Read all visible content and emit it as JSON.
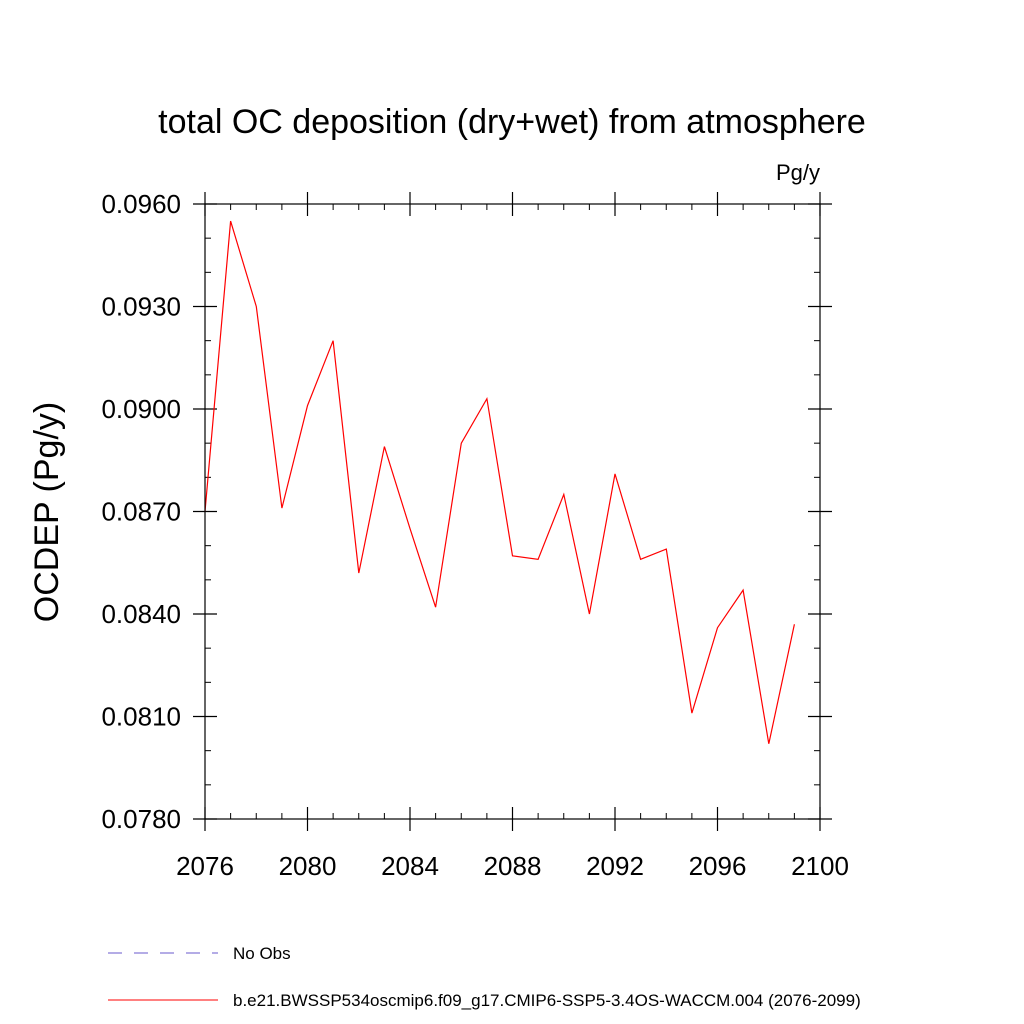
{
  "chart_data": {
    "type": "line",
    "title": "total OC deposition (dry+wet) from atmosphere",
    "units_label": "Pg/y",
    "ylabel": "OCDEP  (Pg/y)",
    "xlabel": "",
    "xlim": [
      2076,
      2100
    ],
    "ylim": [
      0.078,
      0.096
    ],
    "x_ticks": [
      "2076",
      "2080",
      "2084",
      "2088",
      "2092",
      "2096",
      "2100"
    ],
    "y_ticks": [
      "0.0780",
      "0.0810",
      "0.0840",
      "0.0870",
      "0.0900",
      "0.0930",
      "0.0960"
    ],
    "x_tick_values": [
      2076,
      2080,
      2084,
      2088,
      2092,
      2096,
      2100
    ],
    "y_tick_values": [
      0.078,
      0.081,
      0.084,
      0.087,
      0.09,
      0.093,
      0.096
    ],
    "x_minor_step": 1,
    "y_minor_step": 0.001,
    "legend_position": "bottom",
    "series": [
      {
        "name": "b.e21.BWSSP534oscmip6.f09_g17.CMIP6-SSP5-3.4OS-WACCM.004 (2076-2099)",
        "color": "#ff0000",
        "style": "solid",
        "x": [
          2076,
          2077,
          2078,
          2079,
          2080,
          2081,
          2082,
          2083,
          2084,
          2085,
          2086,
          2087,
          2088,
          2089,
          2090,
          2091,
          2092,
          2093,
          2094,
          2095,
          2096,
          2097,
          2098,
          2099
        ],
        "values": [
          0.087,
          0.0955,
          0.093,
          0.0871,
          0.0901,
          0.092,
          0.0852,
          0.0889,
          0.0865,
          0.0842,
          0.089,
          0.0903,
          0.0857,
          0.0856,
          0.0875,
          0.084,
          0.0881,
          0.0856,
          0.0859,
          0.0811,
          0.0836,
          0.0847,
          0.0802,
          0.0837
        ]
      }
    ],
    "legend": [
      {
        "label": "No Obs",
        "color": "#6a5acd",
        "style": "dashed"
      },
      {
        "label": "b.e21.BWSSP534oscmip6.f09_g17.CMIP6-SSP5-3.4OS-WACCM.004 (2076-2099)",
        "color": "#ff0000",
        "style": "solid"
      }
    ]
  }
}
